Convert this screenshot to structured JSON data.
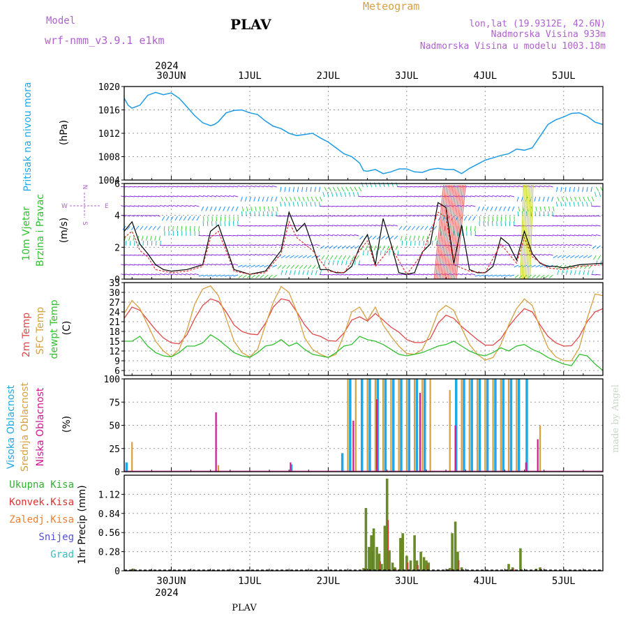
{
  "header": {
    "model_label": "Model",
    "model_name": "wrf-nmm_v3.9.1  e1km",
    "station": "PLAV",
    "title": "Meteogram",
    "lonlat": "lon,lat (19.9312E, 42.6N)",
    "elev": "Nadmorska Visina 933m",
    "elev_model": "Nadmorska Visina u modelu 1003.18m"
  },
  "footer": {
    "station": "PLAV",
    "watermark": "made by Angel"
  },
  "time_axis": {
    "top_year": "2024",
    "bottom_year": "2024",
    "days": [
      "30JUN",
      "1JUL",
      "2JUL",
      "3JUL",
      "4JUL",
      "5JUL"
    ],
    "range_days": [
      -0.6,
      5.5
    ]
  },
  "colors": {
    "pressure": "#1e9be6",
    "wind_speed": "#000000",
    "wind_gust": "#e03030",
    "t2m": "#e04848",
    "tsfc": "#d8a040",
    "dewpt": "#30c030",
    "cloud_high": "#20a8e8",
    "cloud_mid": "#d8a040",
    "cloud_low": "#d01890",
    "precip_total": "#30b030",
    "precip_conv": "#e03030",
    "precip_strat": "#f08030",
    "snow": "#5050e0",
    "hail": "#30c0c0",
    "precip_bar": "#6a8a2a"
  },
  "chart_data": [
    {
      "type": "line",
      "id": "pressure",
      "ylabel": [
        "Pritisak na nivou mora",
        "(hPa)"
      ],
      "ylim": [
        1004,
        1020
      ],
      "yticks": [
        1004,
        1008,
        1012,
        1016,
        1020
      ],
      "series": [
        {
          "key": "pressure",
          "x": [
            -0.6,
            -0.55,
            -0.5,
            -0.4,
            -0.3,
            -0.2,
            -0.1,
            0.0,
            0.1,
            0.2,
            0.3,
            0.4,
            0.5,
            0.55,
            0.6,
            0.7,
            0.8,
            0.9,
            1.0,
            1.1,
            1.2,
            1.3,
            1.4,
            1.5,
            1.6,
            1.7,
            1.8,
            1.9,
            2.0,
            2.1,
            2.2,
            2.3,
            2.4,
            2.45,
            2.5,
            2.6,
            2.7,
            2.8,
            2.9,
            3.0,
            3.1,
            3.2,
            3.3,
            3.4,
            3.5,
            3.6,
            3.7,
            3.8,
            3.9,
            4.0,
            4.1,
            4.2,
            4.3,
            4.4,
            4.5,
            4.6,
            4.7,
            4.8,
            4.9,
            5.0,
            5.1,
            5.2,
            5.3,
            5.4,
            5.5
          ],
          "y": [
            1018,
            1016.8,
            1016.3,
            1016.8,
            1018.5,
            1019,
            1018.6,
            1018.9,
            1018,
            1016.5,
            1015,
            1013.8,
            1013.3,
            1013.5,
            1014,
            1015.5,
            1015.9,
            1016,
            1015.5,
            1015.2,
            1014.1,
            1013.2,
            1012.8,
            1012,
            1011.6,
            1011.8,
            1012,
            1011.2,
            1010.5,
            1009.5,
            1008.5,
            1008,
            1006.9,
            1005.6,
            1005.5,
            1005.8,
            1005.1,
            1005.4,
            1005.9,
            1005.9,
            1005.4,
            1005.3,
            1005.8,
            1006,
            1005.8,
            1005.8,
            1005.1,
            1006,
            1006.7,
            1007.4,
            1007.8,
            1008.2,
            1008.5,
            1009.3,
            1009.1,
            1009.5,
            1011.5,
            1013.5,
            1014.3,
            1014.8,
            1015.4,
            1015.5,
            1014.9,
            1013.9,
            1013.5
          ]
        }
      ]
    },
    {
      "type": "line",
      "id": "wind",
      "ylabel": [
        "10m Vjetar",
        "Brzina i Pravac",
        "(m/s)"
      ],
      "direction_key": [
        "W",
        "E",
        "N",
        "S"
      ],
      "ylim": [
        0,
        6
      ],
      "yticks": [
        0,
        2,
        4,
        6
      ],
      "series": [
        {
          "key": "wind_speed",
          "x": [
            -0.6,
            -0.5,
            -0.4,
            -0.3,
            -0.2,
            -0.1,
            0.0,
            0.2,
            0.4,
            0.5,
            0.6,
            0.8,
            1.0,
            1.2,
            1.4,
            1.5,
            1.6,
            1.7,
            1.8,
            1.9,
            2.0,
            2.1,
            2.2,
            2.3,
            2.4,
            2.5,
            2.6,
            2.7,
            2.8,
            2.9,
            3.0,
            3.1,
            3.2,
            3.3,
            3.4,
            3.5,
            3.6,
            3.7,
            3.8,
            3.9,
            4.0,
            4.1,
            4.2,
            4.3,
            4.4,
            4.5,
            4.6,
            4.7,
            4.8,
            4.9,
            5.0,
            5.2,
            5.5
          ],
          "y": [
            3,
            3.6,
            2.2,
            1.6,
            0.9,
            0.6,
            0.5,
            0.6,
            0.9,
            3,
            3.4,
            0.6,
            0.3,
            0.5,
            1.8,
            4.2,
            3.0,
            3.5,
            2.1,
            0.6,
            0.6,
            0.4,
            0.4,
            0.8,
            2.0,
            2.8,
            0.9,
            3.8,
            2.2,
            0.4,
            0.3,
            0.4,
            1.7,
            2.2,
            4.8,
            4.5,
            1.0,
            3.4,
            0.6,
            0.4,
            0.4,
            0.8,
            2.6,
            2.2,
            1.2,
            3.0,
            1.6,
            1.0,
            0.8,
            0.8,
            0.7,
            0.9,
            1.0
          ]
        },
        {
          "key": "wind_gust",
          "x": [
            -0.6,
            -0.5,
            -0.4,
            -0.3,
            -0.2,
            -0.1,
            0.0,
            0.2,
            0.4,
            0.5,
            0.6,
            0.8,
            1.0,
            1.2,
            1.4,
            1.5,
            1.6,
            1.8,
            2.0,
            2.2,
            2.4,
            2.5,
            2.6,
            2.8,
            3.0,
            3.2,
            3.4,
            3.5,
            3.6,
            3.8,
            4.0,
            4.2,
            4.4,
            4.5,
            4.6,
            4.8,
            5.0,
            5.2,
            5.5
          ],
          "y": [
            2.6,
            3.0,
            1.8,
            1.4,
            0.6,
            0.5,
            0.4,
            0.5,
            0.8,
            2.6,
            3.0,
            0.5,
            0.3,
            0.4,
            1.6,
            3.6,
            2.6,
            1.8,
            0.5,
            0.4,
            1.8,
            2.4,
            0.8,
            2.0,
            0.3,
            1.6,
            4.2,
            3.9,
            0.9,
            0.5,
            0.4,
            2.2,
            1.0,
            2.6,
            1.4,
            0.7,
            0.6,
            0.8,
            0.9
          ]
        }
      ]
    },
    {
      "type": "line",
      "id": "temperature",
      "ylabel": [
        "2m Temp",
        "SFC Temp",
        "dewpt Temp",
        "(C)"
      ],
      "ylim": [
        4.5,
        33
      ],
      "yticks": [
        6,
        9,
        12,
        15,
        18,
        21,
        24,
        27,
        30,
        33
      ],
      "series": [
        {
          "key": "t2m",
          "x": [
            -0.6,
            -0.5,
            -0.4,
            -0.3,
            -0.2,
            -0.1,
            0.0,
            0.1,
            0.2,
            0.3,
            0.4,
            0.5,
            0.6,
            0.7,
            0.8,
            0.9,
            1.0,
            1.1,
            1.2,
            1.3,
            1.4,
            1.5,
            1.6,
            1.7,
            1.8,
            1.9,
            2.0,
            2.1,
            2.2,
            2.3,
            2.4,
            2.5,
            2.6,
            2.7,
            2.8,
            2.9,
            3.0,
            3.1,
            3.2,
            3.3,
            3.4,
            3.5,
            3.6,
            3.7,
            3.8,
            3.9,
            4.0,
            4.1,
            4.2,
            4.3,
            4.4,
            4.5,
            4.6,
            4.7,
            4.8,
            4.9,
            5.0,
            5.1,
            5.2,
            5.3,
            5.4,
            5.5
          ],
          "y": [
            22,
            25.5,
            24.5,
            21.5,
            18.5,
            16,
            14.5,
            14.2,
            17,
            22,
            26,
            28,
            27.2,
            24,
            20,
            18,
            17.2,
            17,
            20.5,
            25.5,
            28,
            27.5,
            24,
            20,
            17.2,
            16.5,
            15.2,
            15,
            17.5,
            21.5,
            22.5,
            21.2,
            23.5,
            21.5,
            19.3,
            17.8,
            15.5,
            14.6,
            14.6,
            15.8,
            20.5,
            23,
            22,
            19.5,
            17.5,
            15.5,
            13.8,
            13.8,
            15.8,
            19.5,
            22.5,
            25,
            24,
            20,
            16.5,
            14.5,
            13.5,
            13.6,
            16.5,
            21,
            24,
            25
          ]
        },
        {
          "key": "tsfc",
          "x": [
            -0.6,
            -0.5,
            -0.4,
            -0.3,
            -0.2,
            -0.1,
            0.0,
            0.1,
            0.2,
            0.3,
            0.4,
            0.5,
            0.6,
            0.7,
            0.8,
            0.9,
            1.0,
            1.1,
            1.2,
            1.3,
            1.4,
            1.5,
            1.6,
            1.7,
            1.8,
            1.9,
            2.0,
            2.1,
            2.2,
            2.3,
            2.4,
            2.5,
            2.6,
            2.7,
            2.8,
            2.9,
            3.0,
            3.1,
            3.2,
            3.3,
            3.4,
            3.5,
            3.6,
            3.7,
            3.8,
            3.9,
            4.0,
            4.1,
            4.2,
            4.3,
            4.4,
            4.5,
            4.6,
            4.7,
            4.8,
            4.9,
            5.0,
            5.1,
            5.2,
            5.3,
            5.4,
            5.5
          ],
          "y": [
            23.5,
            27.5,
            25,
            20,
            15,
            12,
            10.2,
            12.5,
            18.5,
            26.5,
            31,
            32,
            29,
            22,
            15,
            11.5,
            10.2,
            12.5,
            20,
            27,
            31.8,
            30,
            24,
            16,
            12.5,
            11,
            10,
            11,
            17,
            24,
            25.5,
            21.5,
            25.5,
            20,
            16.5,
            13.5,
            11.2,
            11,
            12.5,
            17.5,
            24,
            26,
            24.5,
            19,
            14,
            11,
            9.2,
            10,
            14,
            20,
            25,
            28,
            26,
            19,
            13,
            10.2,
            9,
            9,
            13,
            22,
            29.5,
            29
          ]
        },
        {
          "key": "dewpt",
          "x": [
            -0.6,
            -0.5,
            -0.4,
            -0.3,
            -0.2,
            -0.1,
            0.0,
            0.1,
            0.2,
            0.3,
            0.4,
            0.5,
            0.6,
            0.7,
            0.8,
            0.9,
            1.0,
            1.1,
            1.2,
            1.3,
            1.4,
            1.5,
            1.6,
            1.7,
            1.8,
            1.9,
            2.0,
            2.1,
            2.2,
            2.3,
            2.4,
            2.5,
            2.6,
            2.7,
            2.8,
            2.9,
            3.0,
            3.1,
            3.2,
            3.3,
            3.4,
            3.5,
            3.6,
            3.7,
            3.8,
            3.9,
            4.0,
            4.1,
            4.2,
            4.3,
            4.4,
            4.5,
            4.6,
            4.7,
            4.8,
            4.9,
            5.0,
            5.1,
            5.2,
            5.3,
            5.4,
            5.5
          ],
          "y": [
            15,
            15,
            16.5,
            13.5,
            11.5,
            10.5,
            10.2,
            11.5,
            13.5,
            13.5,
            14.5,
            17,
            15.5,
            13.5,
            11.5,
            10.5,
            10,
            11.5,
            13.5,
            14,
            15.5,
            13.5,
            14.5,
            12.5,
            11,
            10.5,
            10,
            11.5,
            13.5,
            14,
            16.5,
            15.5,
            15,
            14,
            12.5,
            11,
            10.5,
            11,
            11.5,
            12.5,
            13.5,
            14,
            15,
            13.5,
            12,
            11,
            10.5,
            11.5,
            13,
            12,
            13.5,
            14,
            12.5,
            11.5,
            10,
            9,
            8,
            7.5,
            11,
            10.5,
            8,
            6
          ]
        }
      ]
    },
    {
      "type": "bar",
      "id": "cloud",
      "ylabel": [
        "Visoka Oblacnost",
        "Srednja Oblacnost",
        "Niska Oblacnost",
        "(%)"
      ],
      "ylim": [
        0,
        100
      ],
      "yticks": [
        0,
        25,
        50,
        75,
        100
      ],
      "series": [
        {
          "key": "cloud_high",
          "name": "Visoka Oblacnost",
          "x": [
            -0.55,
            1.55,
            2.2,
            2.3,
            2.45,
            2.55,
            2.65,
            2.75,
            2.85,
            2.95,
            3.05,
            3.15,
            3.25,
            3.65,
            3.75,
            3.85,
            3.95,
            4.05,
            4.15,
            4.25,
            4.35,
            4.45,
            4.55
          ],
          "values": [
            10,
            8,
            20,
            100,
            100,
            100,
            100,
            100,
            100,
            100,
            100,
            100,
            100,
            100,
            100,
            100,
            100,
            100,
            100,
            100,
            100,
            100,
            100
          ]
        },
        {
          "key": "cloud_mid",
          "name": "Srednja Oblacnost",
          "x": [
            -0.5,
            0.6,
            2.25,
            2.35,
            2.5,
            2.6,
            2.7,
            2.8,
            2.9,
            3.0,
            3.1,
            3.2,
            3.3,
            3.55,
            3.7,
            3.8,
            3.9,
            4.0,
            4.1,
            4.2,
            4.3,
            4.4,
            4.7
          ],
          "values": [
            32,
            7,
            100,
            100,
            100,
            100,
            100,
            100,
            100,
            100,
            100,
            100,
            100,
            88,
            100,
            100,
            100,
            100,
            100,
            100,
            100,
            100,
            50
          ]
        },
        {
          "key": "cloud_low",
          "name": "Niska Oblacnost",
          "x": [
            0.55,
            1.5,
            2.3,
            2.6,
            3.15,
            3.6,
            4.5,
            4.65
          ],
          "values": [
            64,
            10,
            55,
            78,
            85,
            50,
            10,
            35
          ]
        }
      ]
    },
    {
      "type": "bar",
      "id": "precip",
      "ylabel": [
        "1hr Precip (mm)"
      ],
      "legend": [
        "Ukupna Kisa",
        "Konvek.Kisa",
        "Zaledj.Kisa",
        "Snijeg",
        "Grad"
      ],
      "ylim": [
        0,
        1.4
      ],
      "yticks": [
        0,
        0.28,
        0.56,
        0.84,
        1.12
      ],
      "bars": {
        "x": [
          -0.48,
          2.45,
          2.48,
          2.52,
          2.55,
          2.58,
          2.62,
          2.65,
          2.68,
          2.72,
          2.75,
          2.78,
          2.82,
          2.85,
          2.92,
          2.95,
          3.0,
          3.05,
          3.1,
          3.13,
          3.18,
          3.22,
          3.25,
          3.28,
          3.52,
          3.55,
          3.58,
          3.62,
          3.65,
          3.7,
          4.3,
          4.35,
          4.45,
          4.65,
          4.7
        ],
        "values": [
          0.03,
          0.04,
          0.92,
          0.35,
          0.52,
          0.62,
          0.35,
          0.25,
          0.1,
          0.66,
          1.35,
          0.3,
          0.12,
          0.05,
          0.48,
          0.55,
          0.22,
          0.15,
          0.52,
          0.15,
          0.28,
          0.2,
          0.15,
          0.12,
          0.02,
          0.04,
          0.55,
          0.72,
          0.28,
          0.05,
          0.1,
          0.05,
          0.33,
          0.03,
          0.05
        ]
      }
    }
  ]
}
